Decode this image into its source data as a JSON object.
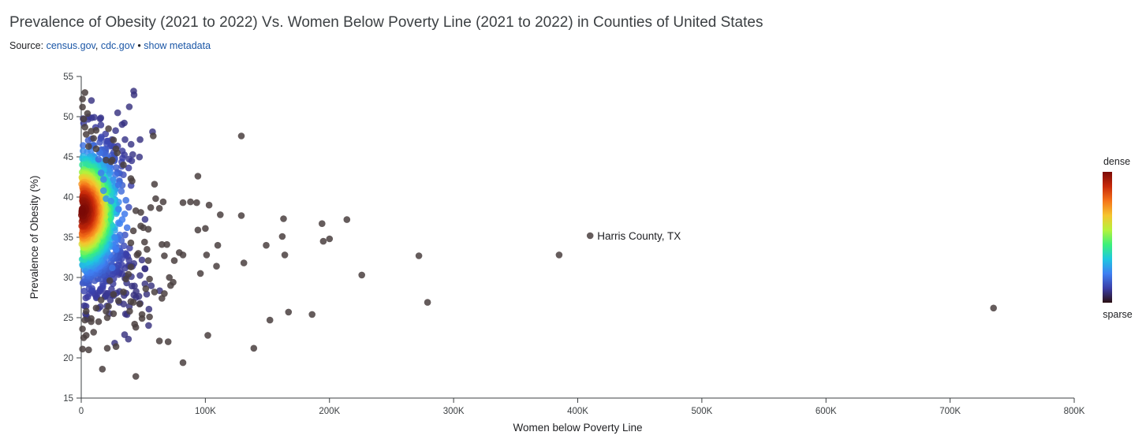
{
  "header": {
    "title": "Prevalence of Obesity (2021 to 2022) Vs. Women Below Poverty Line (2021 to 2022) in Counties of United States",
    "source_prefix": "Source: ",
    "source_links": [
      "census.gov",
      "cdc.gov"
    ],
    "separator": "•",
    "metadata_link": "show metadata"
  },
  "colors": {
    "link": "#1a56a6",
    "axis": "#3c4043",
    "sparse_point": "#4a4040",
    "colormap": [
      "#2b0f12",
      "#3b3ea8",
      "#3f7ff2",
      "#1fc7e0",
      "#3cf07a",
      "#b6f23b",
      "#f5c52f",
      "#f5741a",
      "#c8290a",
      "#7a0a06"
    ]
  },
  "chart_data": {
    "type": "scatter",
    "title": "Prevalence of Obesity (2021 to 2022) Vs. Women Below Poverty Line (2021 to 2022) in Counties of United States",
    "xlabel": "Women below Poverty Line",
    "ylabel": "Prevalence of Obesity (%)",
    "xlim": [
      0,
      800000
    ],
    "ylim": [
      15,
      55
    ],
    "xticks": [
      0,
      100000,
      200000,
      300000,
      400000,
      500000,
      600000,
      700000,
      800000
    ],
    "xtick_labels": [
      "0",
      "100K",
      "200K",
      "300K",
      "400K",
      "500K",
      "600K",
      "700K",
      "800K"
    ],
    "yticks": [
      15,
      20,
      25,
      30,
      35,
      40,
      45,
      50,
      55
    ],
    "ytick_labels": [
      "15",
      "20",
      "25",
      "30",
      "35",
      "40",
      "45",
      "50",
      "55"
    ],
    "color_encoding": "point density",
    "legend": {
      "top_label": "dense",
      "bottom_label": "sparse",
      "position": "right"
    },
    "annotation": {
      "label": "Harris County, TX",
      "x": 410000,
      "y": 35.2
    },
    "points": [
      [
        735000,
        26.2
      ],
      [
        410000,
        35.2
      ],
      [
        385000,
        32.8
      ],
      [
        279000,
        26.9
      ],
      [
        272000,
        32.7
      ],
      [
        226000,
        30.3
      ],
      [
        214000,
        37.2
      ],
      [
        200000,
        34.8
      ],
      [
        195000,
        34.5
      ],
      [
        194000,
        36.7
      ],
      [
        186000,
        25.4
      ],
      [
        167000,
        25.7
      ],
      [
        163000,
        37.3
      ],
      [
        164000,
        32.8
      ],
      [
        162000,
        35.1
      ],
      [
        152000,
        24.7
      ],
      [
        149000,
        34.0
      ],
      [
        139000,
        21.2
      ],
      [
        131000,
        31.8
      ],
      [
        129000,
        37.7
      ],
      [
        129000,
        47.6
      ],
      [
        112000,
        37.8
      ],
      [
        110000,
        34.0
      ],
      [
        109000,
        31.4
      ],
      [
        103000,
        39.0
      ],
      [
        102000,
        22.8
      ],
      [
        101000,
        32.8
      ],
      [
        100000,
        36.1
      ],
      [
        96000,
        30.5
      ],
      [
        94000,
        42.6
      ],
      [
        94000,
        35.9
      ],
      [
        93000,
        39.3
      ],
      [
        88000,
        39.4
      ],
      [
        82000,
        39.3
      ],
      [
        82000,
        32.8
      ],
      [
        82000,
        19.4
      ],
      [
        79000,
        33.1
      ],
      [
        75000,
        32.1
      ],
      [
        74000,
        29.4
      ],
      [
        72000,
        29.0
      ],
      [
        71000,
        30.0
      ],
      [
        70000,
        22.0
      ],
      [
        69000,
        34.1
      ],
      [
        67000,
        32.7
      ],
      [
        67000,
        28.0
      ],
      [
        66000,
        39.4
      ],
      [
        65000,
        34.1
      ],
      [
        65000,
        27.4
      ],
      [
        63000,
        38.6
      ],
      [
        63000,
        22.1
      ],
      [
        60000,
        39.8
      ],
      [
        59000,
        41.6
      ],
      [
        59000,
        28.2
      ],
      [
        58000,
        47.6
      ],
      [
        56000,
        38.7
      ],
      [
        55000,
        25.1
      ],
      [
        55000,
        29.8
      ],
      [
        54000,
        36.0
      ],
      [
        54000,
        32.1
      ],
      [
        53000,
        33.5
      ],
      [
        52000,
        28.6
      ],
      [
        51000,
        34.4
      ],
      [
        50000,
        36.2
      ],
      [
        49000,
        25.4
      ],
      [
        49000,
        24.9
      ],
      [
        48000,
        38.1
      ],
      [
        48000,
        36.4
      ],
      [
        47000,
        26.7
      ],
      [
        46000,
        33.0
      ],
      [
        44000,
        17.7
      ],
      [
        44000,
        23.8
      ],
      [
        43000,
        24.2
      ],
      [
        42000,
        26.9
      ],
      [
        40000,
        27.0
      ],
      [
        40000,
        31.3
      ],
      [
        39000,
        25.8
      ],
      [
        28000,
        21.4
      ],
      [
        26000,
        25.5
      ],
      [
        21000,
        25.0
      ],
      [
        21000,
        21.2
      ],
      [
        17000,
        18.6
      ],
      [
        10000,
        23.2
      ],
      [
        8000,
        24.5
      ],
      [
        6000,
        21.0
      ],
      [
        5000,
        50.4
      ],
      [
        3000,
        53.0
      ],
      [
        1000,
        52.2
      ],
      [
        1000,
        51.2
      ],
      [
        1000,
        21.1
      ],
      [
        2000,
        22.5
      ],
      [
        4000,
        22.8
      ],
      [
        1000,
        23.6
      ],
      [
        3000,
        24.7
      ],
      [
        3000,
        48.7
      ],
      [
        2000,
        49.7
      ],
      [
        22000,
        48.5
      ],
      [
        12000,
        48.3
      ],
      [
        26000,
        47.1
      ],
      [
        28000,
        46.0
      ],
      [
        29000,
        45.5
      ],
      [
        30000,
        41.5
      ],
      [
        20000,
        44.6
      ],
      [
        24000,
        44.4
      ],
      [
        25000,
        44.6
      ],
      [
        34000,
        44.0
      ],
      [
        40000,
        42.3
      ],
      [
        41000,
        42.0
      ],
      [
        44000,
        38.3
      ],
      [
        42000,
        35.8
      ],
      [
        40000,
        34.3
      ],
      [
        45000,
        32.8
      ],
      [
        38000,
        30.4
      ],
      [
        36000,
        29.8
      ],
      [
        34000,
        28.2
      ],
      [
        30000,
        27.1
      ],
      [
        26000,
        27.9
      ],
      [
        22000,
        26.4
      ],
      [
        20000,
        25.8
      ],
      [
        16000,
        27.2
      ],
      [
        14000,
        24.5
      ],
      [
        12000,
        26.2
      ],
      [
        8000,
        24.9
      ],
      [
        4000,
        25.8
      ],
      [
        35000,
        37.9
      ],
      [
        37000,
        36.2
      ],
      [
        36000,
        39.6
      ],
      [
        33000,
        37.2
      ],
      [
        31000,
        36.7
      ],
      [
        30000,
        38.5
      ],
      [
        28000,
        33.5
      ],
      [
        27000,
        35.0
      ],
      [
        25000,
        31.2
      ],
      [
        23000,
        29.6
      ],
      [
        24000,
        39.5
      ],
      [
        20000,
        39.8
      ],
      [
        18000,
        40.8
      ],
      [
        18000,
        42.2
      ],
      [
        16000,
        43.0
      ],
      [
        14000,
        44.7
      ],
      [
        12000,
        46.0
      ],
      [
        10000,
        47.3
      ],
      [
        8000,
        48.2
      ],
      [
        6000,
        46.3
      ],
      [
        4000,
        47.8
      ]
    ]
  }
}
